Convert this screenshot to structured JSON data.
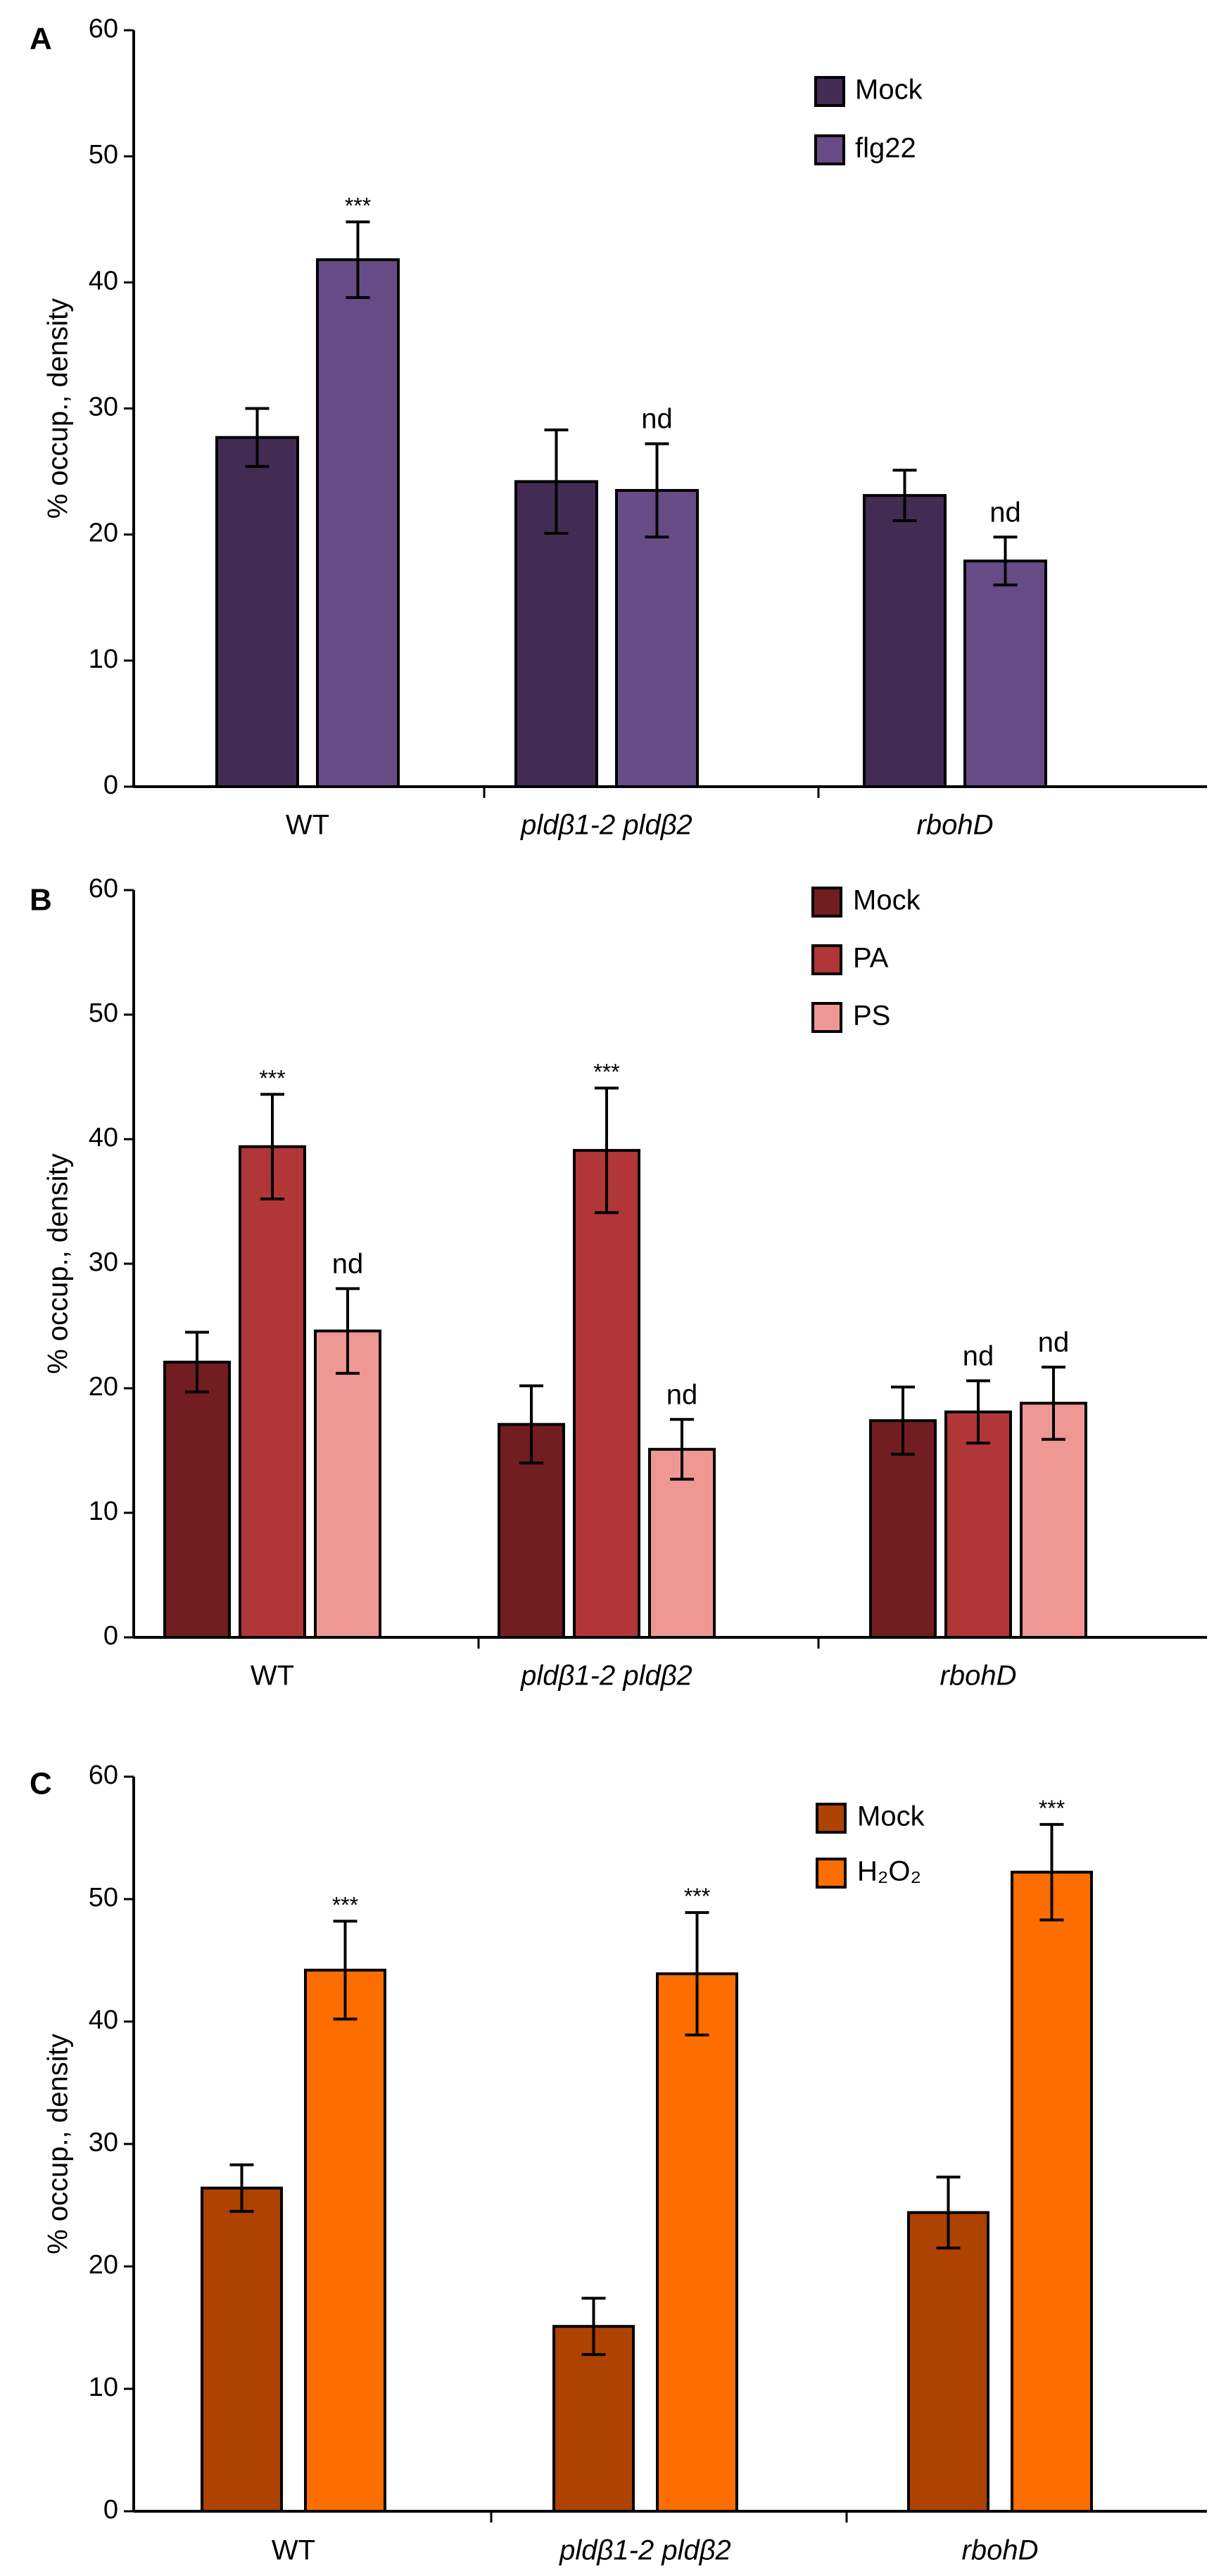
{
  "figure": {
    "panels": [
      "A",
      "B",
      "C"
    ]
  },
  "chart_data": [
    {
      "panel": "A",
      "type": "bar",
      "ylabel": "% occup., density",
      "xlabel": "",
      "ylim": [
        0,
        60
      ],
      "yticks": [
        "0",
        "10",
        "20",
        "30",
        "40",
        "50",
        "60"
      ],
      "categories": [
        "WT",
        "pldβ1-2 pldβ2",
        "rbohD"
      ],
      "italic_categories": [
        false,
        true,
        true
      ],
      "series": [
        {
          "name": "Mock",
          "color": "#432c54",
          "values": [
            27.7,
            24.2,
            23.1
          ],
          "errors": [
            2.3,
            4.1,
            2.0
          ],
          "annotations": [
            "",
            "",
            ""
          ]
        },
        {
          "name": "flg22",
          "color": "#674b86",
          "values": [
            41.8,
            23.5,
            17.9
          ],
          "errors": [
            3.0,
            3.7,
            1.9
          ],
          "annotations": [
            "***",
            "nd",
            "nd"
          ]
        }
      ],
      "legend_position": "top-right"
    },
    {
      "panel": "B",
      "type": "bar",
      "ylabel": "% occup., density",
      "xlabel": "",
      "ylim": [
        0,
        60
      ],
      "yticks": [
        "0",
        "10",
        "20",
        "30",
        "40",
        "50",
        "60"
      ],
      "categories": [
        "WT",
        "pldβ1-2 pldβ2",
        "rbohD"
      ],
      "italic_categories": [
        false,
        true,
        true
      ],
      "series": [
        {
          "name": "Mock",
          "color": "#721d1f",
          "values": [
            22.1,
            17.1,
            17.4
          ],
          "errors": [
            2.4,
            3.1,
            2.7
          ],
          "annotations": [
            "",
            "",
            ""
          ]
        },
        {
          "name": "PA",
          "color": "#b03637",
          "values": [
            39.4,
            39.1,
            18.1
          ],
          "errors": [
            4.2,
            5.0,
            2.5
          ],
          "annotations": [
            "***",
            "***",
            "nd"
          ]
        },
        {
          "name": "PS",
          "color": "#ef9893",
          "values": [
            24.6,
            15.1,
            18.8
          ],
          "errors": [
            3.4,
            2.4,
            2.9
          ],
          "annotations": [
            "nd",
            "nd",
            "nd"
          ]
        }
      ],
      "legend_position": "top-right"
    },
    {
      "panel": "C",
      "type": "bar",
      "ylabel": "% occup., density",
      "xlabel": "",
      "ylim": [
        0,
        60
      ],
      "yticks": [
        "0",
        "10",
        "20",
        "30",
        "40",
        "50",
        "60"
      ],
      "categories": [
        "WT",
        "pldβ1-2 pldβ2",
        "rbohD"
      ],
      "italic_categories": [
        false,
        true,
        true
      ],
      "series": [
        {
          "name": "Mock",
          "color": "#ae4200",
          "values": [
            26.4,
            15.1,
            24.4
          ],
          "errors": [
            1.9,
            2.3,
            2.9
          ],
          "annotations": [
            "",
            "",
            ""
          ]
        },
        {
          "name": "H₂O₂",
          "color": "#fe6d00",
          "values": [
            44.2,
            43.9,
            52.2
          ],
          "errors": [
            4.0,
            5.0,
            3.9
          ],
          "annotations": [
            "***",
            "***",
            "***"
          ]
        }
      ],
      "legend_position": "top-right"
    }
  ]
}
